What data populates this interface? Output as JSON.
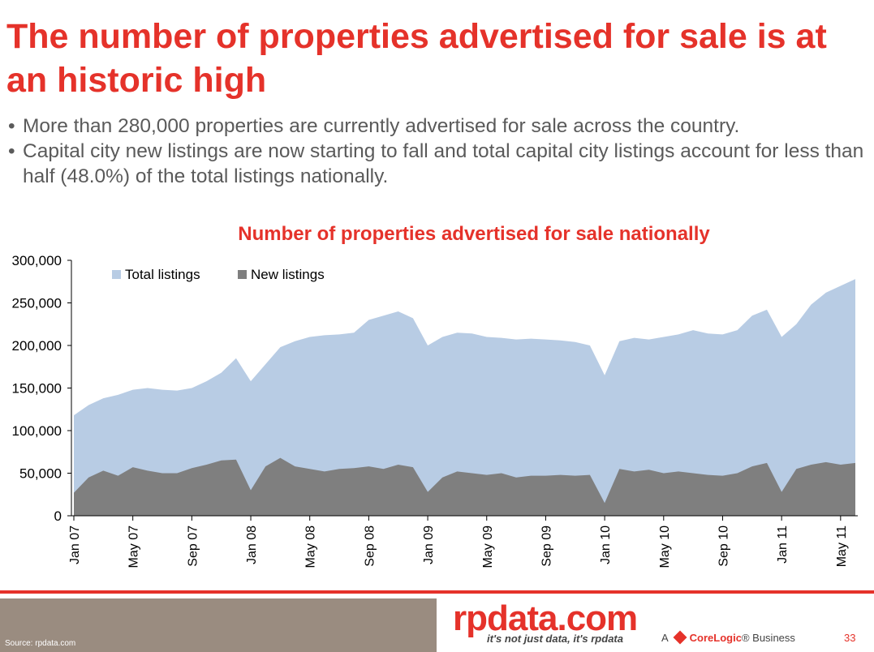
{
  "header": {
    "title": "The number of properties advertised for sale is at an historic high",
    "bullets": [
      "More than 280,000 properties are currently advertised for sale across the country.",
      "Capital city new listings are now starting to fall and total capital city listings account for less than half (48.0%) of the total listings nationally."
    ]
  },
  "chart_data": {
    "type": "area",
    "title": "Number of properties advertised for sale nationally",
    "xlabel": "",
    "ylabel": "",
    "ylim": [
      0,
      300000
    ],
    "yticks": [
      "0",
      "50,000",
      "100,000",
      "150,000",
      "200,000",
      "250,000",
      "300,000"
    ],
    "x_tick_labels": [
      "Jan 07",
      "May 07",
      "Sep 07",
      "Jan 08",
      "May 08",
      "Sep 08",
      "Jan 09",
      "May 09",
      "Sep 09",
      "Jan 10",
      "May 10",
      "Sep 10",
      "Jan 11",
      "May 11"
    ],
    "legend_position": "top-left",
    "grid": false,
    "x": [
      "Jan 07",
      "Feb 07",
      "Mar 07",
      "Apr 07",
      "May 07",
      "Jun 07",
      "Jul 07",
      "Aug 07",
      "Sep 07",
      "Oct 07",
      "Nov 07",
      "Dec 07",
      "Jan 08",
      "Feb 08",
      "Mar 08",
      "Apr 08",
      "May 08",
      "Jun 08",
      "Jul 08",
      "Aug 08",
      "Sep 08",
      "Oct 08",
      "Nov 08",
      "Dec 08",
      "Jan 09",
      "Feb 09",
      "Mar 09",
      "Apr 09",
      "May 09",
      "Jun 09",
      "Jul 09",
      "Aug 09",
      "Sep 09",
      "Oct 09",
      "Nov 09",
      "Dec 09",
      "Jan 10",
      "Feb 10",
      "Mar 10",
      "Apr 10",
      "May 10",
      "Jun 10",
      "Jul 10",
      "Aug 10",
      "Sep 10",
      "Oct 10",
      "Nov 10",
      "Dec 10",
      "Jan 11",
      "Feb 11",
      "Mar 11",
      "Apr 11",
      "May 11",
      "Jun 11"
    ],
    "series": [
      {
        "name": "Total listings",
        "color": "#b8cce4",
        "values": [
          118000,
          130000,
          138000,
          142000,
          148000,
          150000,
          148000,
          147000,
          150000,
          158000,
          168000,
          185000,
          158000,
          178000,
          198000,
          205000,
          210000,
          212000,
          213000,
          215000,
          230000,
          235000,
          240000,
          232000,
          200000,
          210000,
          215000,
          214000,
          210000,
          209000,
          207000,
          208000,
          207000,
          206000,
          204000,
          200000,
          165000,
          205000,
          209000,
          207000,
          210000,
          213000,
          218000,
          214000,
          213000,
          218000,
          235000,
          242000,
          210000,
          225000,
          248000,
          262000,
          270000,
          278000
        ]
      },
      {
        "name": "New listings",
        "color": "#7f7f7f",
        "values": [
          27000,
          45000,
          53000,
          47000,
          57000,
          53000,
          50000,
          50000,
          56000,
          60000,
          65000,
          66000,
          30000,
          58000,
          68000,
          58000,
          55000,
          52000,
          55000,
          56000,
          58000,
          55000,
          60000,
          57000,
          28000,
          45000,
          52000,
          50000,
          48000,
          50000,
          45000,
          47000,
          47000,
          48000,
          47000,
          48000,
          15000,
          55000,
          52000,
          54000,
          50000,
          52000,
          50000,
          48000,
          47000,
          50000,
          58000,
          62000,
          28000,
          55000,
          60000,
          63000,
          60000,
          62000
        ]
      }
    ]
  },
  "footer": {
    "source": "Source: rpdata.com",
    "logo": "rpdata.com",
    "tagline": "it's not just data, it's rpdata",
    "corelogic_prefix": "A",
    "corelogic_brand": "CoreLogic",
    "corelogic_suffix": "® Business",
    "page_number": "33"
  }
}
